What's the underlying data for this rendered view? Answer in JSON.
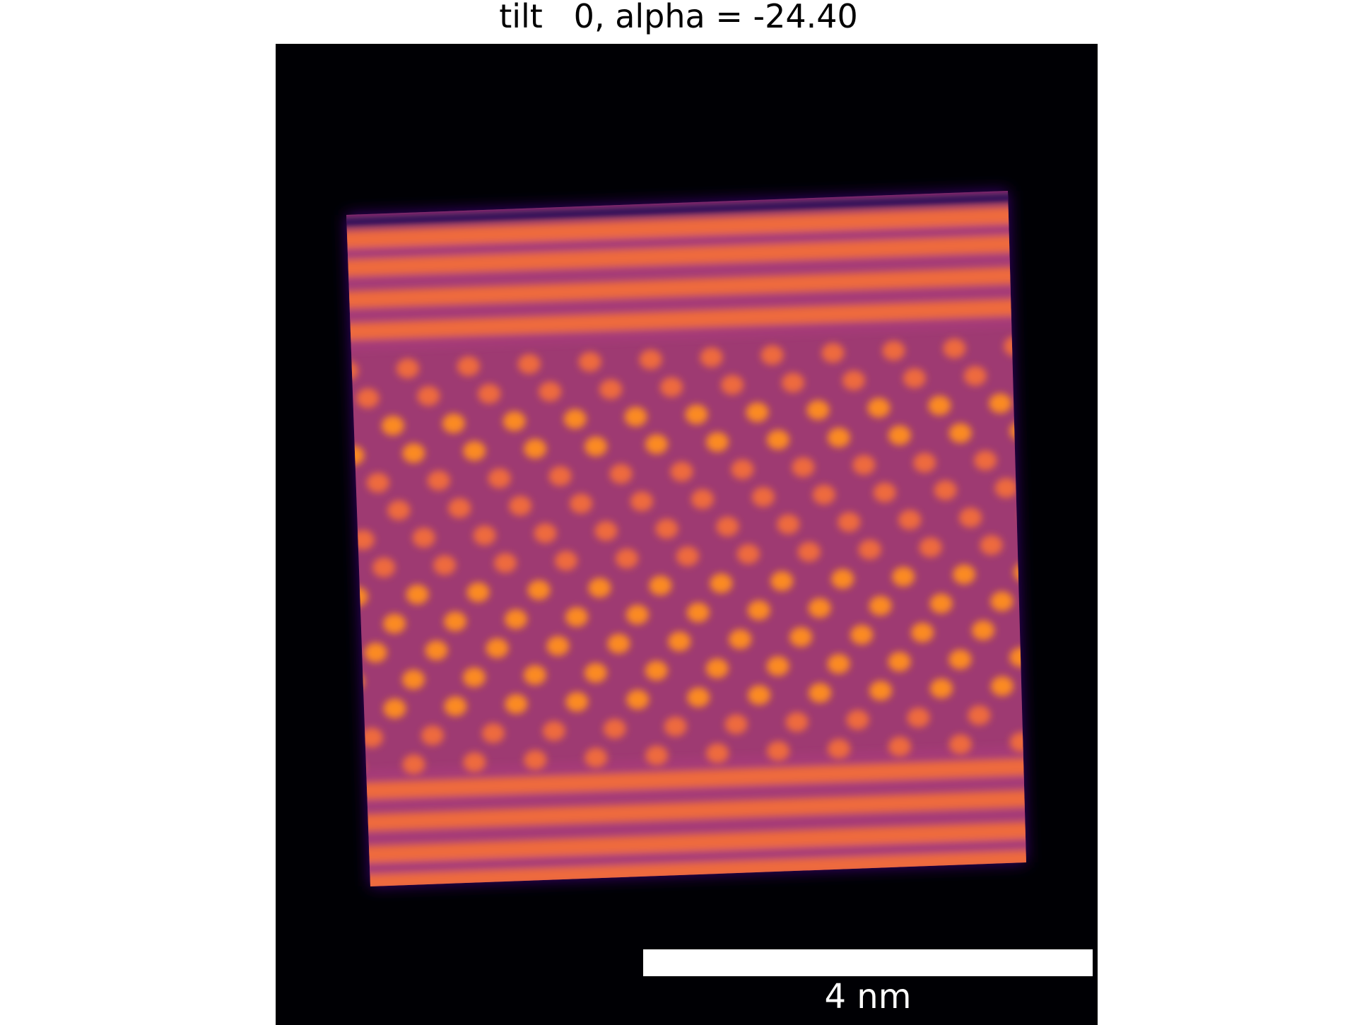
{
  "figure": {
    "title": "tilt   0, alpha = -24.40"
  },
  "image": {
    "colormap": "inferno",
    "background_color": "#000004",
    "colors": {
      "dark_edge": "#2a0b57",
      "dim": "#a63a78",
      "bright": "#ee6a3e",
      "peak": "#fb8a24"
    }
  },
  "scale_bar": {
    "label": "4 nm",
    "color": "#ffffff"
  }
}
